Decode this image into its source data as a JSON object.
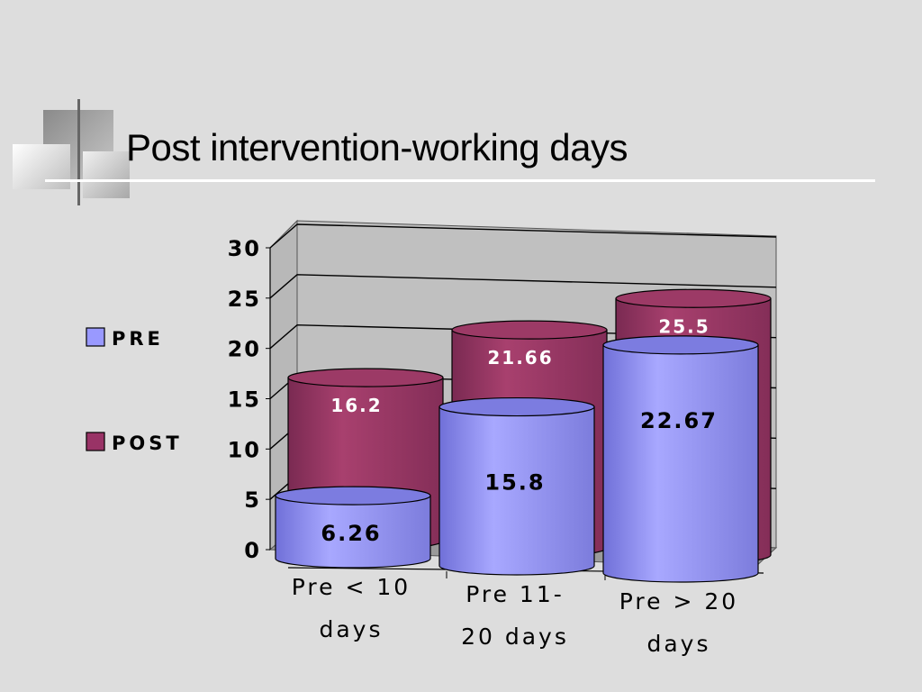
{
  "slide": {
    "title": "Post intervention-working days"
  },
  "chart_data": {
    "type": "bar",
    "categories": [
      "Pre < 10 days",
      "Pre 11-20 days",
      "Pre > 20 days"
    ],
    "category_lines": [
      [
        "Pre < 10",
        "days"
      ],
      [
        "Pre 11-",
        "20 days"
      ],
      [
        "Pre > 20",
        "days"
      ]
    ],
    "series": [
      {
        "name": "PRE",
        "values": [
          6.26,
          15.8,
          22.67
        ],
        "color": "#9999ff",
        "labels": [
          "6.26",
          "15.8",
          "22.67"
        ]
      },
      {
        "name": "POST",
        "values": [
          16.2,
          21.66,
          25.5
        ],
        "color": "#993366",
        "labels": [
          "16.2",
          "21.66",
          "25.5"
        ]
      }
    ],
    "ylim": [
      0,
      30
    ],
    "yticks": [
      "0",
      "5",
      "10",
      "15",
      "20",
      "25",
      "30"
    ],
    "grid": true,
    "legend_position": "left",
    "style": "3D cylinder"
  }
}
